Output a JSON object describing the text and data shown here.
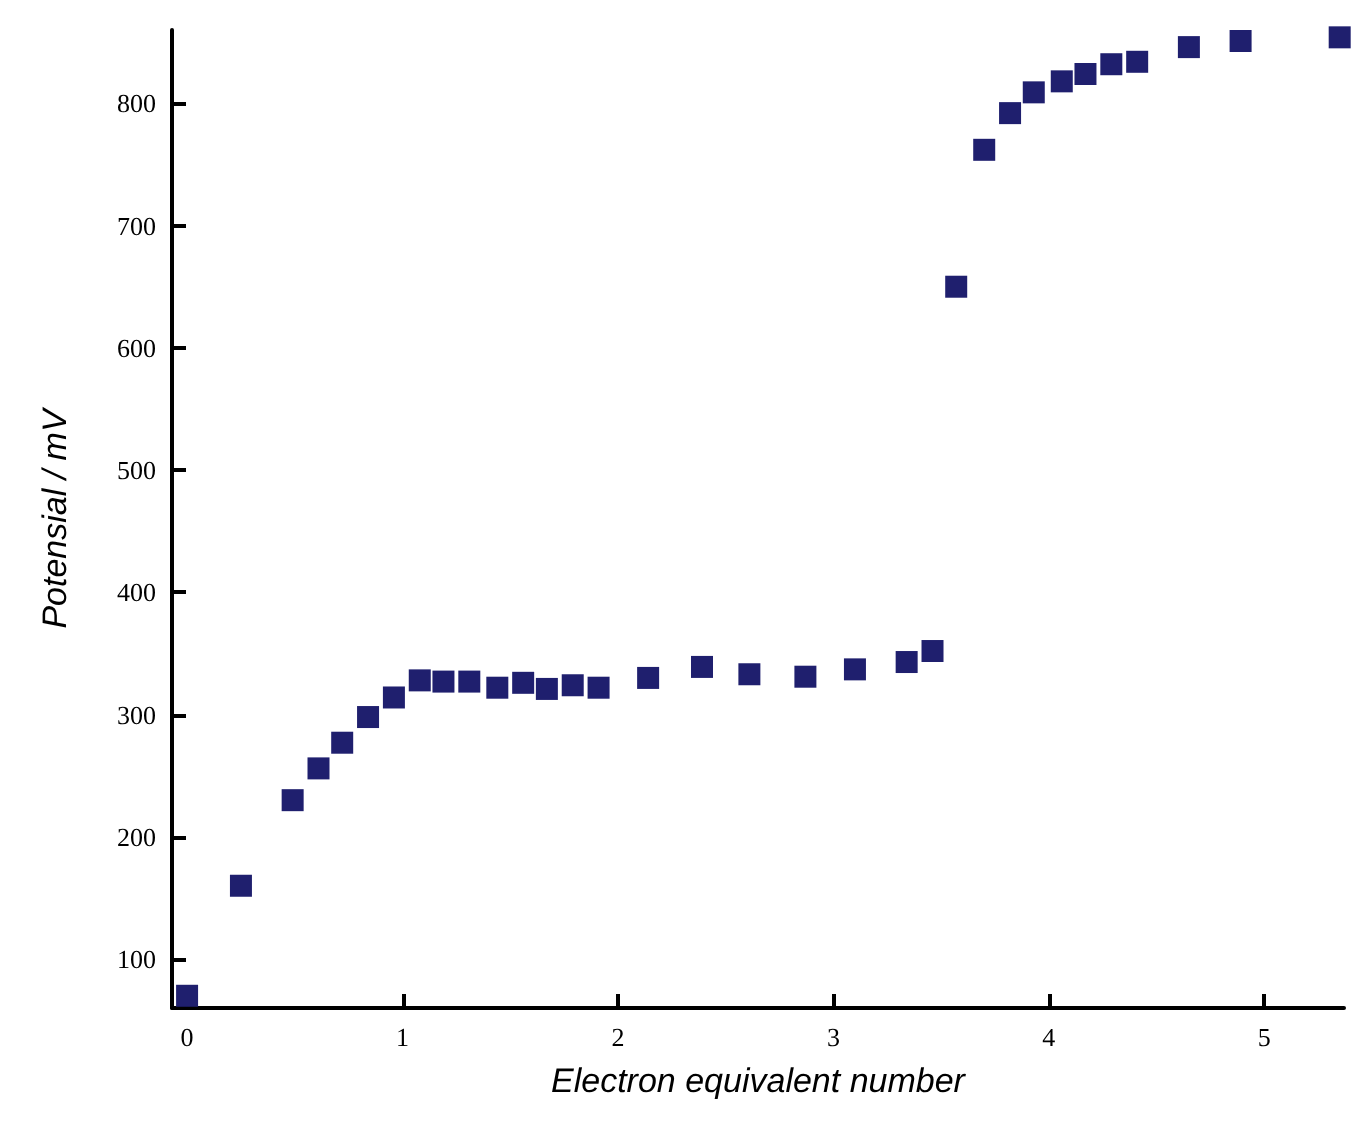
{
  "chart_data": {
    "type": "scatter",
    "xlabel": "Electron equivalent number",
    "ylabel": "Potensial / mV",
    "x": [
      0,
      0.25,
      0.49,
      0.61,
      0.72,
      0.84,
      0.96,
      1.08,
      1.19,
      1.31,
      1.44,
      1.56,
      1.67,
      1.79,
      1.91,
      2.14,
      2.39,
      2.61,
      2.87,
      3.1,
      3.34,
      3.46,
      3.57,
      3.7,
      3.82,
      3.93,
      4.06,
      4.17,
      4.29,
      4.41,
      4.65,
      4.89,
      5.35
    ],
    "series": [
      {
        "color": "#1f1f6e",
        "values": [
          70,
          160,
          230,
          256,
          277,
          298,
          314,
          328,
          327,
          327,
          322,
          326,
          321,
          324,
          322,
          330,
          339,
          333,
          331,
          337,
          343,
          352,
          650,
          762,
          792,
          809,
          818,
          824,
          832,
          834,
          846,
          851,
          854
        ]
      }
    ],
    "xlim": [
      -0.07,
      5.37
    ],
    "ylim": [
      60,
      860
    ],
    "xticks": [
      0,
      1,
      2,
      3,
      4,
      5
    ],
    "yticks": [
      100,
      200,
      300,
      400,
      500,
      600,
      700,
      800
    ],
    "marker": "square"
  }
}
